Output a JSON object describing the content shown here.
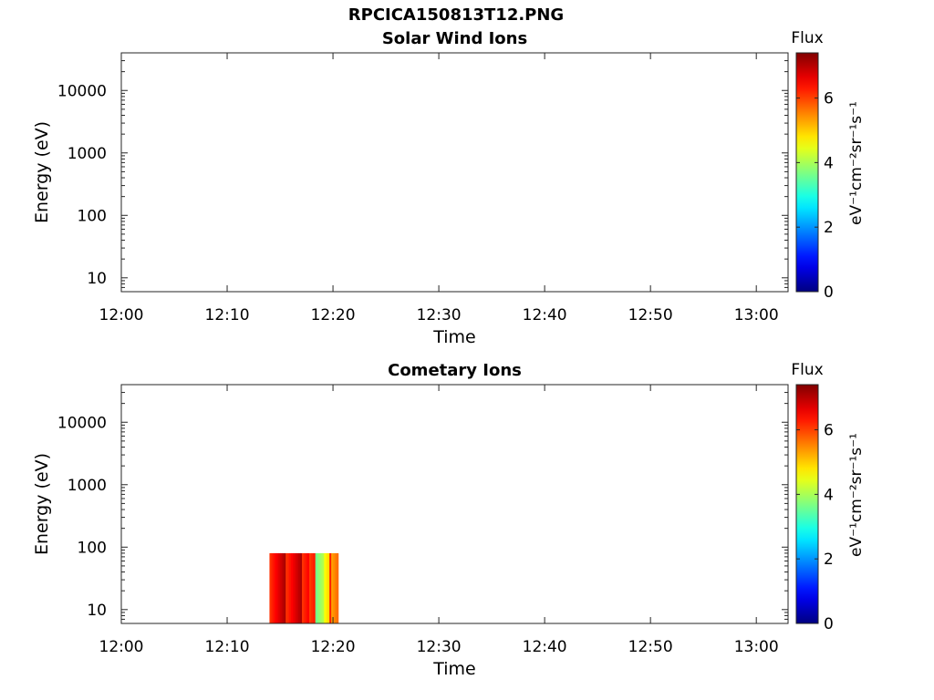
{
  "figure_title": "RPCICA150813T12.PNG",
  "chart_data": [
    {
      "type": "heatmap",
      "title": "Solar Wind Ions",
      "xlabel": "Time",
      "ylabel": "Energy (eV)",
      "x_ticks": [
        "12:00",
        "12:10",
        "12:20",
        "12:30",
        "12:40",
        "12:50",
        "13:00"
      ],
      "xlim": [
        "12:00",
        "13:03"
      ],
      "y_scale": "log",
      "y_ticks": [
        10,
        100,
        1000,
        10000
      ],
      "ylim": [
        6,
        40000
      ],
      "colorbar": {
        "title": "Flux",
        "label": "eV⁻¹cm⁻²sr⁻¹s⁻¹",
        "ticks": [
          0,
          2,
          4,
          6
        ],
        "range": [
          0,
          7.4
        ],
        "colormap": "jet"
      },
      "blocks": []
    },
    {
      "type": "heatmap",
      "title": "Cometary Ions",
      "xlabel": "Time",
      "ylabel": "Energy (eV)",
      "x_ticks": [
        "12:00",
        "12:10",
        "12:20",
        "12:30",
        "12:40",
        "12:50",
        "13:00"
      ],
      "xlim": [
        "12:00",
        "13:03"
      ],
      "y_scale": "log",
      "y_ticks": [
        10,
        100,
        1000,
        10000
      ],
      "ylim": [
        6,
        40000
      ],
      "colorbar": {
        "title": "Flux",
        "label": "eV⁻¹cm⁻²sr⁻¹s⁻¹",
        "ticks": [
          0,
          2,
          4,
          6
        ],
        "range": [
          0,
          7.4
        ],
        "colormap": "jet"
      },
      "blocks": [
        {
          "t_start": "12:14:00",
          "t_end": "12:17:45",
          "e_min": 6,
          "e_max": 80,
          "flux": 6.6
        },
        {
          "t_start": "12:17:45",
          "t_end": "12:18:20",
          "e_min": 6,
          "e_max": 80,
          "flux": 6.3
        },
        {
          "t_start": "12:18:20",
          "t_end": "12:19:10",
          "e_min": 6,
          "e_max": 80,
          "flux": 3.6
        },
        {
          "t_start": "12:19:10",
          "t_end": "12:19:40",
          "e_min": 6,
          "e_max": 80,
          "flux": 4.4
        },
        {
          "t_start": "12:19:40",
          "t_end": "12:20:30",
          "e_min": 6,
          "e_max": 80,
          "flux": 5.8
        }
      ]
    }
  ]
}
